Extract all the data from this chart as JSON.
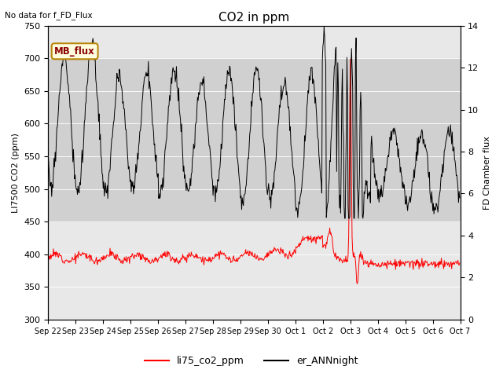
{
  "title": "CO2 in ppm",
  "ylabel_left": "LI7500 CO2 (ppm)",
  "ylabel_right": "FD Chamber flux",
  "note_text": "No data for f_FD_Flux",
  "mb_flux_label": "MB_flux",
  "ylim_left": [
    300,
    750
  ],
  "ylim_right": [
    0,
    14
  ],
  "legend_labels": [
    "li75_co2_ppm",
    "er_ANNnight"
  ],
  "legend_colors": [
    "red",
    "black"
  ],
  "gray_band": [
    450,
    700
  ],
  "plot_bg": "#e8e8e8",
  "band_color": "#d0d0d0"
}
